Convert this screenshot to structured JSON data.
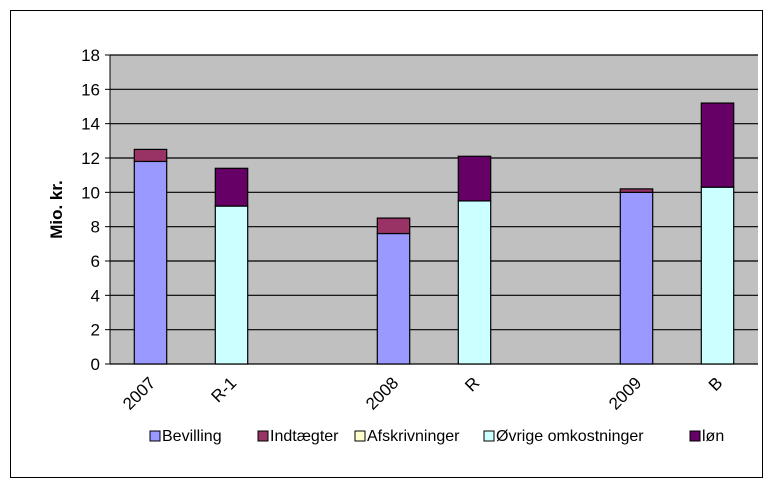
{
  "chart_data": {
    "type": "bar",
    "stacked": true,
    "categories": [
      "2007",
      "R-1",
      "",
      "2008",
      "R",
      "",
      "2009",
      "B"
    ],
    "ylabel": "Mio. kr.",
    "xlabel": "",
    "ylim": [
      0,
      18
    ],
    "yticks": [
      0,
      2,
      4,
      6,
      8,
      10,
      12,
      14,
      16,
      18
    ],
    "grid": true,
    "legend_position": "bottom",
    "series": [
      {
        "name": "Bevilling",
        "color": "#9999ff",
        "values": [
          11.8,
          0,
          0,
          7.6,
          0,
          0,
          10.0,
          0
        ]
      },
      {
        "name": "Indtægter",
        "color": "#993366",
        "values": [
          0.7,
          0,
          0,
          0.9,
          0,
          0,
          0.2,
          0
        ]
      },
      {
        "name": "Afskrivninger",
        "color": "#ffffcc",
        "values": [
          0,
          0,
          0,
          0,
          0,
          0,
          0,
          0
        ]
      },
      {
        "name": "Øvrige omkostninger",
        "color": "#ccffff",
        "values": [
          0,
          9.2,
          0,
          0,
          9.5,
          0,
          0,
          10.3
        ]
      },
      {
        "name": "løn",
        "color": "#660066",
        "values": [
          0,
          2.2,
          0,
          0,
          2.6,
          0,
          0,
          4.9
        ]
      }
    ],
    "plot_background": "#c0c0c0"
  }
}
